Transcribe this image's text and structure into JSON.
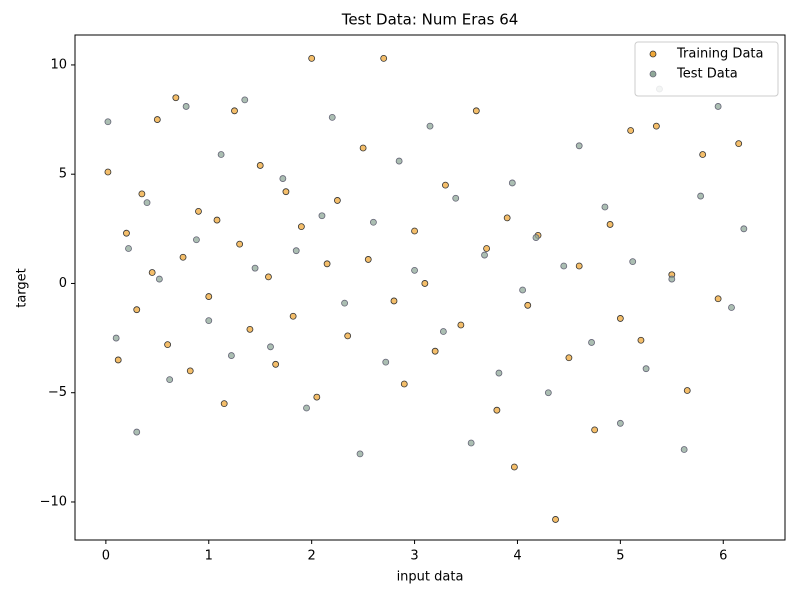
{
  "chart_data": {
    "type": "scatter",
    "title": "Test Data: Num Eras 64",
    "x_label": "input data",
    "y_label": "target",
    "xlim": [
      -0.3,
      6.6
    ],
    "ylim": [
      -11.74,
      11.37
    ],
    "xticks": [
      0,
      1,
      2,
      3,
      4,
      5,
      6
    ],
    "yticks": [
      {
        "value": -10,
        "label": "−10"
      },
      {
        "value": -5,
        "label": "−5"
      },
      0,
      5,
      10
    ],
    "legend": "upper right",
    "series": [
      {
        "name": "Training Data",
        "color": "#f0a838",
        "x": [
          0.02,
          0.12,
          0.2,
          0.3,
          0.35,
          0.45,
          0.5,
          0.6,
          0.68,
          0.75,
          0.82,
          0.9,
          1.0,
          1.08,
          1.15,
          1.25,
          1.3,
          1.4,
          1.5,
          1.58,
          1.65,
          1.75,
          1.82,
          1.9,
          2.0,
          2.05,
          2.15,
          2.25,
          2.35,
          2.5,
          2.55,
          2.7,
          2.8,
          2.9,
          3.0,
          3.1,
          3.2,
          3.3,
          3.45,
          3.6,
          3.7,
          3.8,
          3.9,
          3.97,
          4.1,
          4.2,
          4.37,
          4.5,
          4.6,
          4.75,
          4.9,
          5.0,
          5.1,
          5.2,
          5.35,
          5.5,
          5.65,
          5.8,
          5.95,
          6.15
        ],
        "y": [
          5.1,
          -3.5,
          2.3,
          -1.2,
          4.1,
          0.5,
          7.5,
          -2.8,
          8.5,
          1.2,
          -4.0,
          3.3,
          -0.6,
          2.9,
          -5.5,
          7.9,
          1.8,
          -2.1,
          5.4,
          0.3,
          -3.7,
          4.2,
          -1.5,
          2.6,
          10.3,
          -5.2,
          0.9,
          3.8,
          -2.4,
          6.2,
          1.1,
          10.3,
          -0.8,
          -4.6,
          2.4,
          0.0,
          -3.1,
          4.5,
          -1.9,
          7.9,
          1.6,
          -5.8,
          3.0,
          -8.4,
          -1.0,
          2.2,
          -10.8,
          -3.4,
          0.8,
          -6.7,
          2.7,
          -1.6,
          7.0,
          -2.6,
          7.2,
          0.4,
          -4.9,
          5.9,
          -0.7,
          6.4
        ]
      },
      {
        "name": "Test Data",
        "color": "#8fa898",
        "x": [
          0.02,
          0.1,
          0.22,
          0.3,
          0.4,
          0.52,
          0.62,
          0.78,
          0.88,
          1.0,
          1.12,
          1.22,
          1.35,
          1.45,
          1.6,
          1.72,
          1.85,
          1.95,
          2.1,
          2.2,
          2.32,
          2.47,
          2.6,
          2.72,
          2.85,
          3.0,
          3.15,
          3.28,
          3.4,
          3.55,
          3.68,
          3.82,
          3.95,
          4.05,
          4.18,
          4.3,
          4.45,
          4.6,
          4.72,
          4.85,
          5.0,
          5.12,
          5.25,
          5.38,
          5.5,
          5.62,
          5.78,
          5.95,
          6.08,
          6.2
        ],
        "y": [
          7.4,
          -2.5,
          1.6,
          -6.8,
          3.7,
          0.2,
          -4.4,
          8.1,
          2.0,
          -1.7,
          5.9,
          -3.3,
          8.4,
          0.7,
          -2.9,
          4.8,
          1.5,
          -5.7,
          3.1,
          7.6,
          -0.9,
          -7.8,
          2.8,
          -3.6,
          5.6,
          0.6,
          7.2,
          -2.2,
          3.9,
          -7.3,
          1.3,
          -4.1,
          4.6,
          -0.3,
          2.1,
          -5.0,
          0.8,
          6.3,
          -2.7,
          3.5,
          -6.4,
          1.0,
          -3.9,
          8.9,
          0.2,
          -7.6,
          4.0,
          8.1,
          -1.1,
          2.5
        ]
      }
    ]
  }
}
